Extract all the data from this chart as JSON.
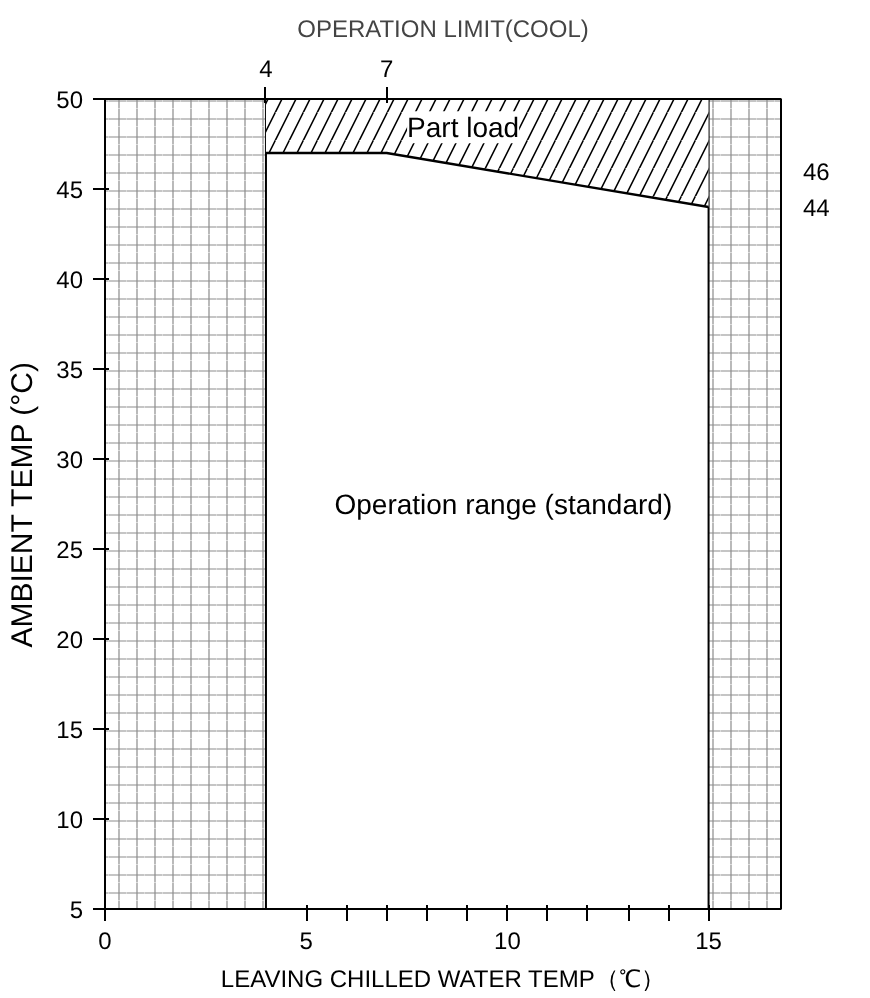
{
  "chart_data": {
    "type": "line",
    "title": "OPERATION LIMIT(COOL)",
    "xlabel": "LEAVING CHILLED WATER TEMP（℃）",
    "ylabel": "AMBIENT TEMP (°C)",
    "series": [
      {
        "color": "#000000",
        "x": [
          4,
          7,
          15
        ],
        "values": [
          47,
          47,
          44
        ],
        "lower": [
          47,
          47,
          44
        ],
        "upper": [
          50,
          50,
          50
        ]
      }
    ],
    "xlim": [
      0,
      16.8
    ],
    "xticks": [
      0,
      5,
      {
        "value": 6,
        "label": null
      },
      {
        "value": 7,
        "label": null
      },
      {
        "value": 8,
        "label": null
      },
      {
        "value": 9,
        "label": null
      },
      10,
      {
        "value": 11,
        "label": null
      },
      {
        "value": 12,
        "label": null
      },
      {
        "value": 13,
        "label": null
      },
      {
        "value": 14,
        "label": null
      },
      15
    ],
    "ylim": [
      5,
      50
    ],
    "yticks": [
      5,
      10,
      15,
      20,
      25,
      30,
      35,
      40,
      45,
      50
    ],
    "x2lim": [
      0,
      16.8
    ],
    "x2ticks": [
      4,
      7
    ],
    "y2lim": [
      5,
      50
    ],
    "y2ticks": [
      46,
      44
    ],
    "bands": [
      {
        "axis": "x",
        "from": 0,
        "to": 4,
        "color": "#000000"
      },
      {
        "axis": "x",
        "from": 15,
        "to": 16.8,
        "color": "#000000"
      }
    ],
    "annotations": [
      "Part load",
      "Operation range (standard)"
    ],
    "grid": false,
    "marker": "none",
    "line_style": "solid"
  }
}
